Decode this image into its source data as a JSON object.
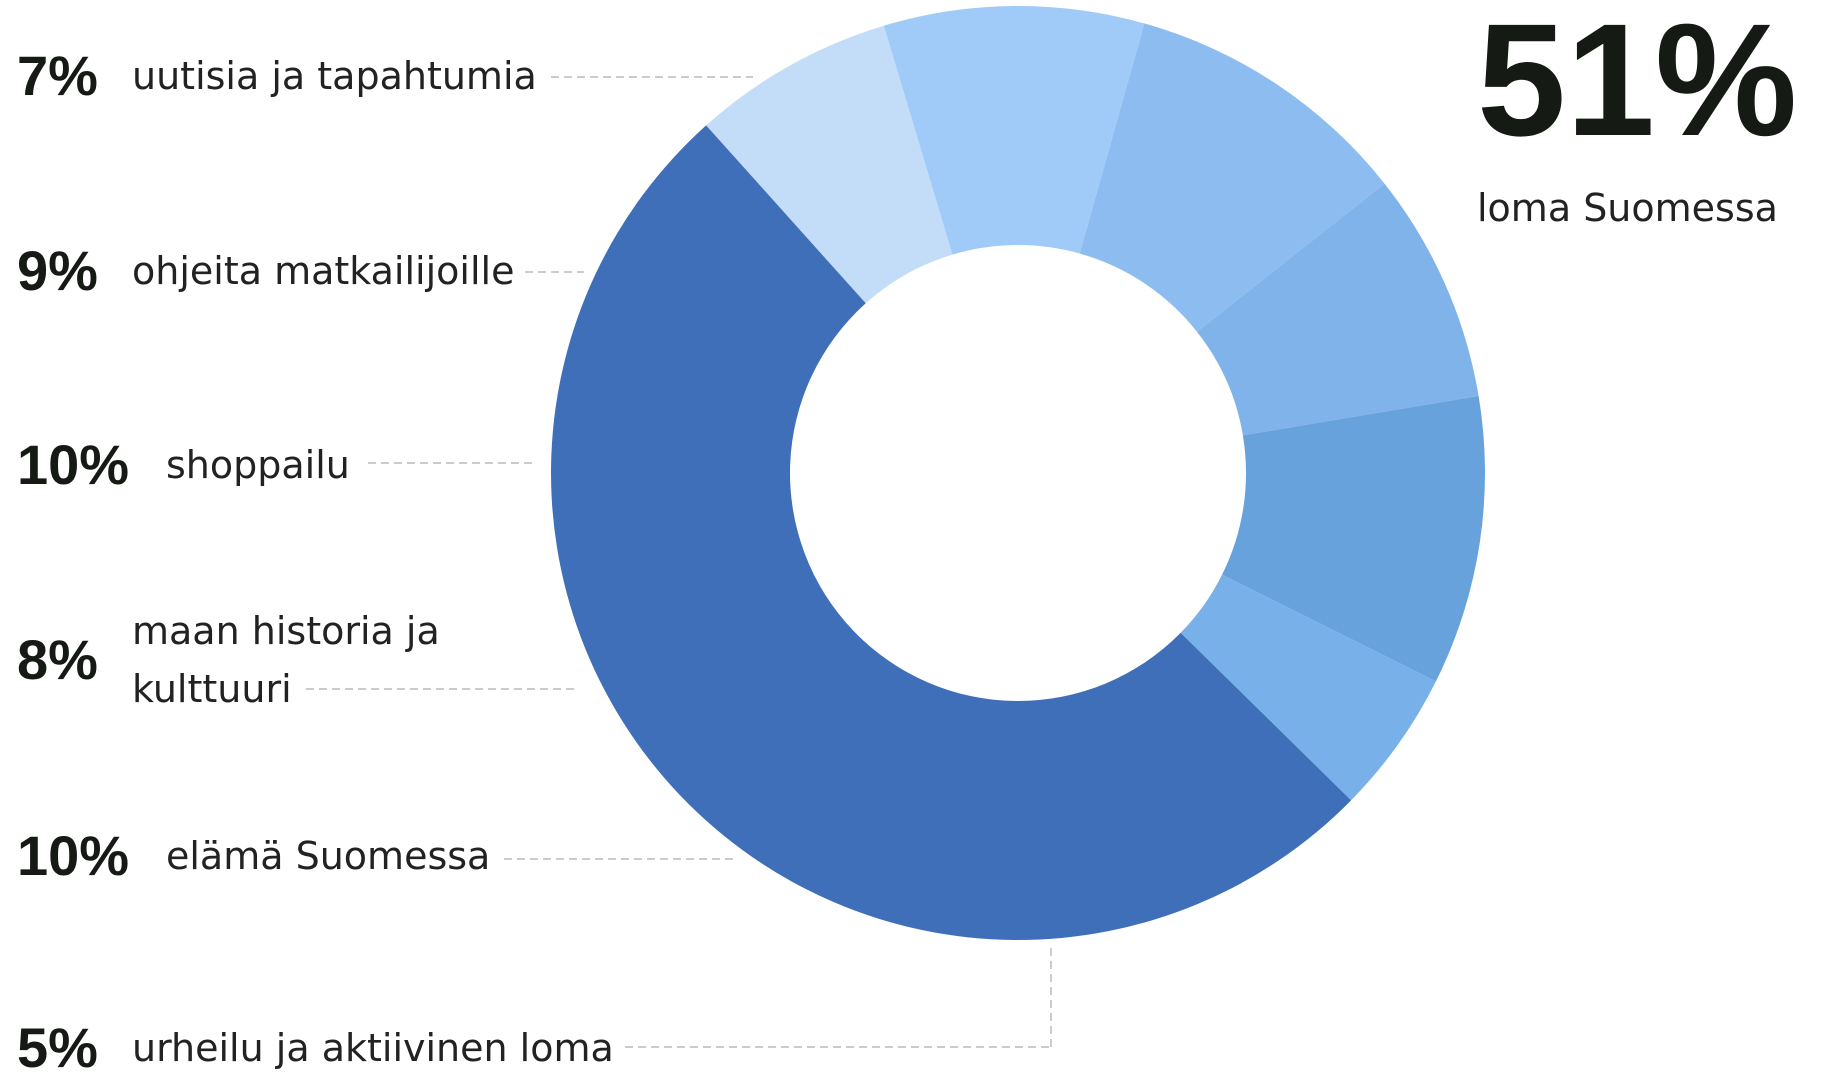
{
  "chart_data": {
    "type": "donut",
    "categories": [
      "uutisia ja tapahtumia",
      "ohjeita matkailijoille",
      "shoppailu",
      "maan historia ja kulttuuri",
      "elämä Suomessa",
      "urheilu ja aktiivinen loma",
      "loma Suomessa"
    ],
    "values": [
      7,
      9,
      10,
      8,
      10,
      5,
      51
    ],
    "value_labels": [
      "7%",
      "9%",
      "10%",
      "8%",
      "10%",
      "5%",
      "51%"
    ],
    "colors": [
      "#c3dcf8",
      "#a0cbf8",
      "#8dbdf0",
      "#80b3ea",
      "#68a2dc",
      "#78b0ea",
      "#3f6fb8"
    ]
  }
}
